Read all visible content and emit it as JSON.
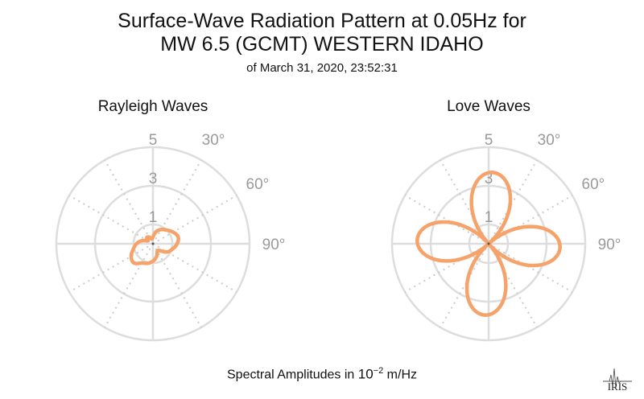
{
  "title_line1": "Surface-Wave Radiation Pattern at 0.05Hz for",
  "title_line2": "MW 6.5 (GCMT) WESTERN IDAHO",
  "subtitle": "of March 31, 2020, 23:52:31",
  "axis_label": {
    "prefix": "Spectral Amplitudes in ",
    "base": "10",
    "exponent": "−2",
    "unit": " m/Hz"
  },
  "logo_text": "IRIS",
  "colors": {
    "pattern": "#f6a26b",
    "grid": "#dddddd",
    "ray": "#cccccc",
    "tick": "#9a9a9a",
    "text": "#111111"
  },
  "chart_data": [
    {
      "type": "polar-line",
      "title": "Rayleigh Waves",
      "r_ticks": [
        "1",
        "3",
        "5"
      ],
      "r_max": 5,
      "theta_ticks": [
        "30°",
        "60°",
        "90°"
      ],
      "theta_direction": "clockwise from north",
      "series": [
        {
          "theta_deg": [
            0,
            15,
            30,
            45,
            60,
            75,
            90,
            105,
            120,
            135,
            150,
            165,
            180,
            195,
            210,
            225,
            240,
            255,
            270,
            285,
            300,
            315,
            330,
            345,
            360
          ],
          "r": [
            0.35,
            0.65,
            0.85,
            1.0,
            1.2,
            1.35,
            1.25,
            1.05,
            0.85,
            0.5,
            0.45,
            0.7,
            0.9,
            1.05,
            1.15,
            1.4,
            1.3,
            1.05,
            0.85,
            0.6,
            0.3,
            0.45,
            0.4,
            0.25,
            0.35
          ]
        }
      ]
    },
    {
      "type": "polar-line",
      "title": "Love Waves",
      "r_ticks": [
        "1",
        "3",
        "5"
      ],
      "r_max": 5,
      "theta_ticks": [
        "30°",
        "60°",
        "90°"
      ],
      "theta_direction": "clockwise from north",
      "series": [
        {
          "formula_note": "four-lobed pattern",
          "lobe_directions_deg": [
            359,
            93,
            179,
            273
          ],
          "lobe_peak_r": 3.7
        }
      ]
    }
  ]
}
